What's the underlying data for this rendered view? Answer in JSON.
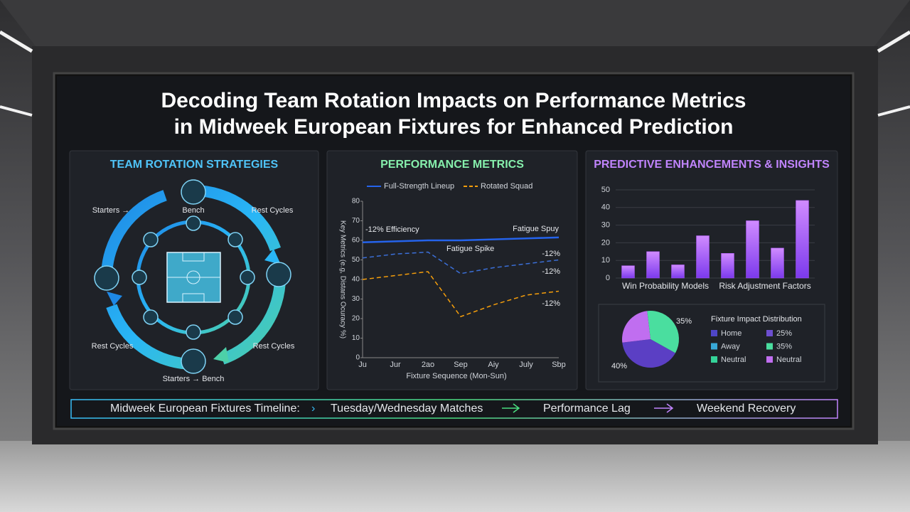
{
  "title_lines": [
    "Decoding Team Rotation Impacts on Performance Metrics",
    "in Midweek European Fixtures for Enhanced Prediction"
  ],
  "rotation": {
    "heading": "TEAM ROTATION STRATEGIES",
    "labels": [
      "Starters →",
      "Bench",
      "Rest Cycles",
      "Rest Cycles",
      "Rest Cycles",
      "Starters → Bench"
    ]
  },
  "timeline": {
    "label": "Midweek European Fixtures Timeline:",
    "steps": [
      "Tuesday/Wednesday Matches",
      "Performance Lag",
      "Weekend Recovery"
    ]
  },
  "chart_data": [
    {
      "type": "line",
      "title": "PERFORMANCE METRICS",
      "ylabel": "Key Metrics (e.g, Distans Ocuracy %)",
      "xlabel": "Fixture Sequence (Mon-Sun)",
      "categories": [
        "Ju",
        "Jur",
        "2ao",
        "Sep",
        "Aiy",
        "July",
        "Sbp"
      ],
      "series": [
        {
          "name": "Full-Strength Lineup",
          "color": "#2563eb",
          "dashed": false,
          "values": [
            59,
            59.5,
            60,
            60,
            60.5,
            61,
            61.5
          ]
        },
        {
          "name": "Rotated Squad",
          "color": "#f59e0b",
          "dashed": true,
          "values": [
            40,
            42,
            44,
            21,
            27,
            32,
            34
          ]
        },
        {
          "color": "#3b6fd8",
          "dashed": true,
          "values": [
            51,
            53,
            54,
            43,
            46,
            48,
            50
          ]
        }
      ],
      "annotations": [
        "-12% Efficiency",
        "Fatigue Spuy",
        "Fatigue Spike",
        "-12%",
        "-12%",
        "-12%"
      ],
      "ylim": [
        0,
        80
      ],
      "yticks": [
        0,
        10,
        20,
        30,
        40,
        50,
        60,
        70,
        80
      ]
    },
    {
      "type": "bar",
      "title": "PREDICTIVE ENHANCEMENTS & INSIGHTS",
      "categories": [
        null,
        null,
        null,
        null,
        null,
        null,
        null,
        null
      ],
      "values": [
        7,
        15,
        7.5,
        24,
        14,
        32.5,
        17,
        44
      ],
      "group_labels": [
        "Win Probability Models",
        "Risk Adjustment Factors"
      ],
      "color": "#a855f7",
      "ylim": [
        0,
        50
      ],
      "yticks": [
        0,
        10,
        20,
        30,
        40,
        50
      ],
      "grid": true
    },
    {
      "type": "pie",
      "title": "Fixture Impact Distribution",
      "categories": [
        "Home",
        "Away",
        "Neutral"
      ],
      "colors": [
        "#4f46c8",
        "#38a9d8",
        "#34d399"
      ],
      "slices": [
        {
          "label": "35%",
          "value": 35,
          "color": "#4ade9f"
        },
        {
          "label": "40%",
          "value": 40,
          "color": "#5b3fc4"
        },
        {
          "label": "25%",
          "value": 25,
          "color": "#c06ef0"
        }
      ],
      "legend_extra": [
        {
          "label": "25%",
          "color": "#6d4fd0"
        },
        {
          "label": "35%",
          "color": "#4ade9f"
        },
        {
          "label": "Neutral",
          "color": "#c06ef0"
        }
      ]
    }
  ]
}
